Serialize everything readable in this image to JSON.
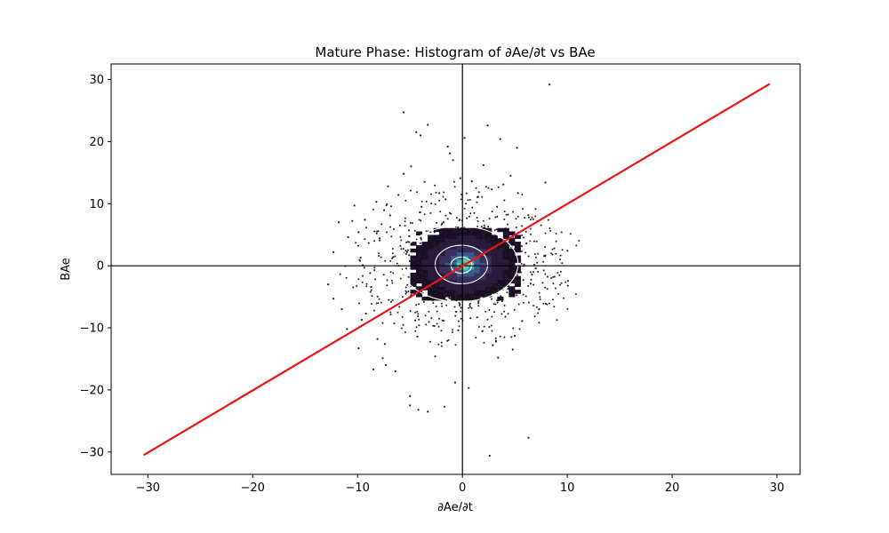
{
  "chart_data": {
    "type": "scatter",
    "title": "Mature Phase: Histogram of ∂Ae/∂t vs BAe",
    "xlabel": "∂Ae/∂t",
    "ylabel": "BAe",
    "xlim": [
      -33.5,
      32.2
    ],
    "ylim": [
      -33.6,
      32.5
    ],
    "xticks": [
      -30,
      -20,
      -10,
      0,
      10,
      20,
      30
    ],
    "yticks": [
      -30,
      -20,
      -10,
      0,
      10,
      20,
      30
    ],
    "grid": false,
    "zero_lines": {
      "x": 0,
      "y": 0,
      "color": "#000000"
    },
    "fit_line": {
      "x": [
        -30.4,
        29.3
      ],
      "y": [
        -30.5,
        29.3
      ],
      "color": "#ee1111"
    },
    "histogram": {
      "bin_size": 0.65,
      "colormap": [
        "#1a0e26",
        "#2a1a3c",
        "#3a3060",
        "#3b5a8a",
        "#3aa0a0",
        "#5ad0b0"
      ],
      "core": {
        "x": 0,
        "y": 0,
        "value": "peak"
      }
    },
    "contours": [
      {
        "cx": -0.3,
        "cy": 0.3,
        "rx": 5.6,
        "ry": 6.1,
        "label": "outer"
      },
      {
        "cx": -0.1,
        "cy": 0.2,
        "rx": 2.5,
        "ry": 3.1,
        "label": "middle"
      },
      {
        "cx": -0.1,
        "cy": 0.1,
        "rx": 1.0,
        "ry": 1.3,
        "label": "inner"
      }
    ],
    "points": [
      [
        -5.6,
        24.7
      ],
      [
        -4.4,
        21.5
      ],
      [
        -4.0,
        21.0
      ],
      [
        -3.3,
        22.7
      ],
      [
        -1.4,
        19.2
      ],
      [
        -1.2,
        18.1
      ],
      [
        -0.9,
        17.0
      ],
      [
        0.2,
        20.6
      ],
      [
        2.4,
        22.6
      ],
      [
        3.6,
        20.4
      ],
      [
        5.2,
        19.0
      ],
      [
        8.3,
        29.2
      ],
      [
        7.9,
        13.4
      ],
      [
        4.6,
        14.5
      ],
      [
        5.3,
        11.7
      ],
      [
        -12.3,
        2.2
      ],
      [
        -11.8,
        7.0
      ],
      [
        -10.5,
        7.2
      ],
      [
        -9.3,
        7.4
      ],
      [
        -9.9,
        5.4
      ],
      [
        -10.9,
        4.6
      ],
      [
        -9.5,
        0.1
      ],
      [
        -12.8,
        -3.0
      ],
      [
        -12.3,
        -5.3
      ],
      [
        -11.5,
        -7.0
      ],
      [
        -9.6,
        -8.7
      ],
      [
        -9.2,
        -7.7
      ],
      [
        -9.9,
        -13.3
      ],
      [
        -8.5,
        -16.7
      ],
      [
        -7.6,
        -14.9
      ],
      [
        -7.3,
        -16.0
      ],
      [
        -6.4,
        -17.0
      ],
      [
        -5.0,
        -21.0
      ],
      [
        -5.0,
        -22.5
      ],
      [
        -4.2,
        -23.2
      ],
      [
        -3.3,
        -23.5
      ],
      [
        -1.7,
        -22.7
      ],
      [
        0.6,
        -19.7
      ],
      [
        -0.7,
        -18.8
      ],
      [
        2.6,
        -30.6
      ],
      [
        6.3,
        -27.7
      ],
      [
        3.4,
        -14.8
      ],
      [
        4.8,
        -13.5
      ],
      [
        5.7,
        -8.9
      ],
      [
        7.3,
        -7.0
      ],
      [
        6.5,
        -2.9
      ],
      [
        7.0,
        -0.4
      ],
      [
        5.4,
        0.0
      ],
      [
        6.1,
        3.6
      ],
      [
        4.1,
        6.0
      ],
      [
        -7.1,
        12.8
      ],
      [
        -6.1,
        11.4
      ],
      [
        -4.9,
        16.0
      ],
      [
        -5.6,
        14.8
      ],
      [
        2.0,
        16.2
      ],
      [
        -1.8,
        7.0
      ],
      [
        -6.9,
        8.1
      ],
      [
        -8.2,
        10.3
      ],
      [
        -8.7,
        -3.4
      ],
      [
        -8.1,
        -11.8
      ],
      [
        -7.4,
        -12.6
      ],
      [
        -4.3,
        -11.4
      ],
      [
        -2.6,
        -14.6
      ],
      [
        2.9,
        -12.8
      ],
      [
        4.1,
        -8.2
      ],
      [
        3.2,
        -12.1
      ],
      [
        3.9,
        13.1
      ],
      [
        2.8,
        12.3
      ],
      [
        1.5,
        11.1
      ],
      [
        -3.6,
        13.5
      ],
      [
        -1.6,
        10.7
      ],
      [
        -0.2,
        14.1
      ],
      [
        -8.8,
        -1.2
      ],
      [
        -7.9,
        4.4
      ],
      [
        -3.9,
        9.5
      ],
      [
        -6.6,
        1.4
      ],
      [
        -6.8,
        -5.8
      ],
      [
        -0.4,
        -10.4
      ],
      [
        3.3,
        9.5
      ],
      [
        4.7,
        3.0
      ],
      [
        -10.3,
        9.7
      ],
      [
        -9.7,
        1.3
      ],
      [
        -5.1,
        5.7
      ],
      [
        -4.5,
        -8.8
      ],
      [
        1.4,
        -8.3
      ],
      [
        3.8,
        -5.1
      ],
      [
        5.0,
        -11.3
      ],
      [
        -2.2,
        11.7
      ],
      [
        0.9,
        13.6
      ],
      [
        -11.0,
        -10.2
      ]
    ]
  }
}
